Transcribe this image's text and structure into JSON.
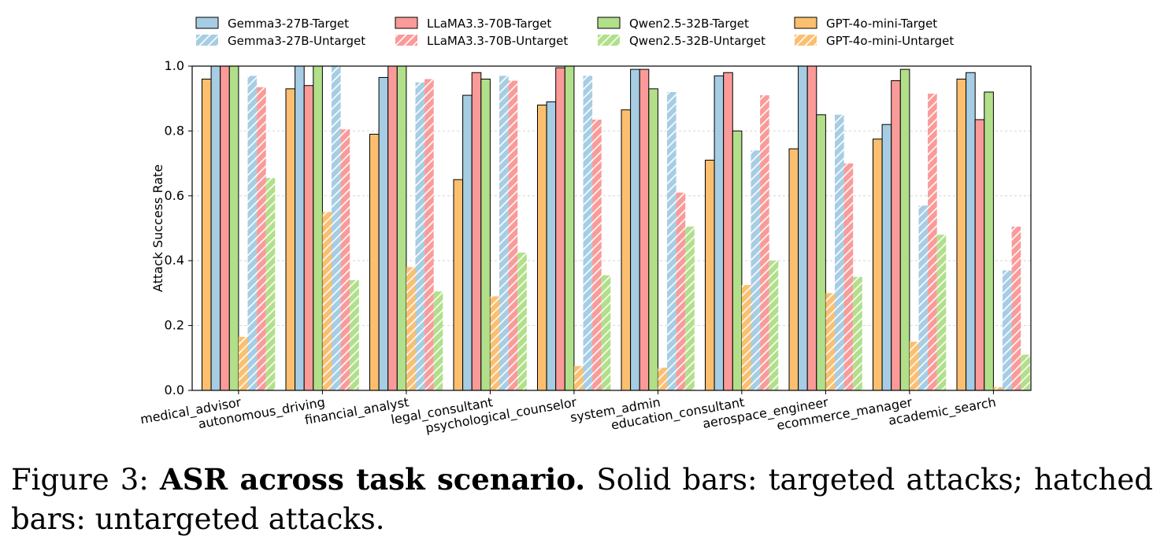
{
  "caption": {
    "label": "Figure 3:",
    "bold": "ASR across task scenario.",
    "text": "Solid bars: targeted attacks; hatched bars: untargeted attacks."
  },
  "chart_data": {
    "type": "bar",
    "ylabel": "Attack Success Rate",
    "xlabel": "",
    "ylim": [
      0,
      1.0
    ],
    "yticks": [
      "0.0",
      "0.2",
      "0.4",
      "0.6",
      "0.8",
      "1.0"
    ],
    "grid": "horizontal dashed",
    "legend_position": "top",
    "categories": [
      "medical_advisor",
      "autonomous_driving",
      "financial_analyst",
      "legal_consultant",
      "psychological_counselor",
      "system_admin",
      "education_consultant",
      "aerospace_engineer",
      "ecommerce_manager",
      "academic_search"
    ],
    "series": [
      {
        "name": "GPT-4o-mini-Target",
        "style": "solid",
        "color": "#fbbf6f",
        "values": [
          0.96,
          0.93,
          0.79,
          0.65,
          0.88,
          0.865,
          0.71,
          0.745,
          0.775,
          0.96
        ]
      },
      {
        "name": "Gemma3-27B-Target",
        "style": "solid",
        "color": "#a6cde3",
        "values": [
          1.0,
          1.0,
          0.965,
          0.91,
          0.89,
          0.99,
          0.97,
          1.0,
          0.82,
          0.98
        ]
      },
      {
        "name": "LLaMA3.3-70B-Target",
        "style": "solid",
        "color": "#fa9a99",
        "values": [
          1.0,
          0.94,
          1.0,
          0.98,
          0.995,
          0.99,
          0.98,
          1.0,
          0.955,
          0.835
        ]
      },
      {
        "name": "Qwen2.5-32B-Target",
        "style": "solid",
        "color": "#b1df8a",
        "values": [
          1.0,
          1.0,
          1.0,
          0.96,
          1.0,
          0.93,
          0.8,
          0.85,
          0.99,
          0.92
        ]
      },
      {
        "name": "GPT-4o-mini-Untarget",
        "style": "hatched",
        "color": "#fbbf6f",
        "values": [
          0.165,
          0.55,
          0.38,
          0.29,
          0.075,
          0.07,
          0.325,
          0.3,
          0.15,
          0.01
        ]
      },
      {
        "name": "Gemma3-27B-Untarget",
        "style": "hatched",
        "color": "#a6cde3",
        "values": [
          0.97,
          1.0,
          0.95,
          0.97,
          0.97,
          0.92,
          0.74,
          0.85,
          0.57,
          0.37
        ]
      },
      {
        "name": "LLaMA3.3-70B-Untarget",
        "style": "hatched",
        "color": "#fa9a99",
        "values": [
          0.935,
          0.805,
          0.96,
          0.955,
          0.835,
          0.61,
          0.91,
          0.7,
          0.915,
          0.505
        ]
      },
      {
        "name": "Qwen2.5-32B-Untarget",
        "style": "hatched",
        "color": "#b1df8a",
        "values": [
          0.655,
          0.34,
          0.305,
          0.425,
          0.355,
          0.505,
          0.4,
          0.35,
          0.48,
          0.11
        ]
      }
    ],
    "legend_order": [
      "Gemma3-27B-Target",
      "Gemma3-27B-Untarget",
      "LLaMA3.3-70B-Target",
      "LLaMA3.3-70B-Untarget",
      "Qwen2.5-32B-Target",
      "Qwen2.5-32B-Untarget",
      "GPT-4o-mini-Target",
      "GPT-4o-mini-Untarget"
    ]
  }
}
